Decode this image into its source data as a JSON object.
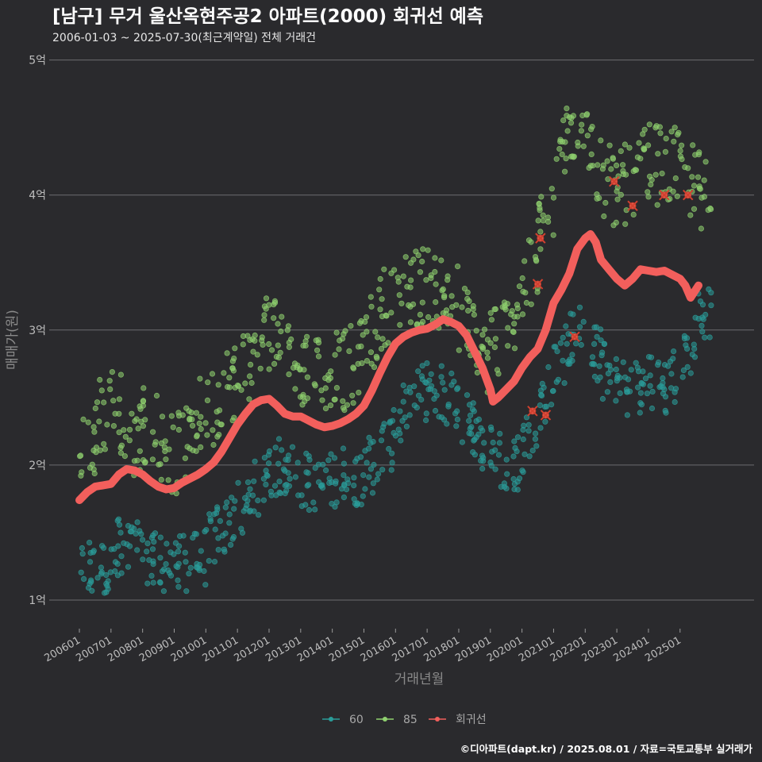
{
  "chart_data": {
    "type": "scatter",
    "title": "[남구] 무거 울산옥현주공2 아파트(2000) 회귀선 예측",
    "subtitle": "2006-01-03 ~ 2025-07-30(최근계약일) 전체 거래건",
    "xlabel": "거래년월",
    "ylabel": "매매가(원)",
    "caption": "©디아파트(dapt.kr) / 2025.08.01 / 자료=국토교통부 실거래가",
    "x_range": [
      "2006-01",
      "2025-08"
    ],
    "y_range": [
      0.8,
      5.08
    ],
    "y_ticks": [
      {
        "value": 1,
        "label": "1억"
      },
      {
        "value": 2,
        "label": "2억"
      },
      {
        "value": 3,
        "label": "3억"
      },
      {
        "value": 4,
        "label": "4억"
      },
      {
        "value": 5,
        "label": "5억"
      }
    ],
    "x_ticks": [
      "200601",
      "200701",
      "200801",
      "200901",
      "201001",
      "201101",
      "201201",
      "201301",
      "201401",
      "201501",
      "201601",
      "201701",
      "201801",
      "201901",
      "202001",
      "202101",
      "202201",
      "202301",
      "202401",
      "202501"
    ],
    "grid": "horizontal",
    "legend_position": "bottom",
    "legend": [
      {
        "name": "60",
        "color": "#2a9d9a"
      },
      {
        "name": "85",
        "color": "#8fd16f"
      },
      {
        "name": "회귀선",
        "color": "#f25f5c"
      }
    ],
    "series": [
      {
        "name": "60",
        "type": "scatter",
        "color": "#2a9d9a",
        "bands": [
          [
            "2006-01",
            1.22,
            1.2
          ],
          [
            "2006-07",
            1.25,
            1.22
          ],
          [
            "2007-01",
            1.35,
            1.45
          ],
          [
            "2007-07",
            1.35,
            1.45
          ],
          [
            "2008-01",
            1.38,
            1.25
          ],
          [
            "2008-07",
            1.3,
            1.25
          ],
          [
            "2009-01",
            1.25,
            1.28
          ],
          [
            "2009-07",
            1.28,
            1.32
          ],
          [
            "2010-01",
            1.45,
            1.48
          ],
          [
            "2010-07",
            1.55,
            1.6
          ],
          [
            "2011-01",
            1.65,
            1.7
          ],
          [
            "2011-07",
            1.8,
            1.95
          ],
          [
            "2012-01",
            1.95,
            2.0
          ],
          [
            "2012-07",
            1.95,
            1.95
          ],
          [
            "2013-01",
            1.9,
            1.85
          ],
          [
            "2013-07",
            1.85,
            1.88
          ],
          [
            "2014-01",
            1.9,
            1.95
          ],
          [
            "2014-07",
            1.92,
            1.92
          ],
          [
            "2015-01",
            1.98,
            2.02
          ],
          [
            "2015-07",
            2.1,
            2.2
          ],
          [
            "2016-01",
            2.3,
            2.45
          ],
          [
            "2016-07",
            2.5,
            2.55
          ],
          [
            "2017-01",
            2.55,
            2.55
          ],
          [
            "2017-07",
            2.5,
            2.45
          ],
          [
            "2018-01",
            2.4,
            2.3
          ],
          [
            "2018-07",
            2.2,
            2.15
          ],
          [
            "2019-01",
            2.1,
            2.0
          ],
          [
            "2019-07",
            2.0,
            2.05
          ],
          [
            "2020-01",
            2.15,
            2.25
          ],
          [
            "2020-07",
            2.45,
            2.6
          ],
          [
            "2021-01",
            2.75,
            2.85
          ],
          [
            "2021-07",
            2.95,
            3.0
          ],
          [
            "2022-01",
            2.9,
            2.8
          ],
          [
            "2022-07",
            2.7,
            2.65
          ],
          [
            "2023-01",
            2.6,
            2.55
          ],
          [
            "2023-07",
            2.55,
            2.6
          ],
          [
            "2024-01",
            2.65,
            2.6
          ],
          [
            "2024-07",
            2.55,
            2.7
          ],
          [
            "2025-01",
            2.8,
            2.9
          ],
          [
            "2025-07",
            3.1,
            3.15
          ]
        ]
      },
      {
        "name": "85",
        "type": "scatter",
        "color": "#8fd16f",
        "bands": [
          [
            "2006-01",
            2.05,
            2.1
          ],
          [
            "2006-07",
            2.35,
            2.45
          ],
          [
            "2007-01",
            2.45,
            2.35
          ],
          [
            "2007-07",
            2.25,
            2.15
          ],
          [
            "2008-01",
            2.3,
            2.35
          ],
          [
            "2008-07",
            2.2,
            2.05
          ],
          [
            "2009-01",
            2.05,
            2.2
          ],
          [
            "2009-07",
            2.3,
            2.4
          ],
          [
            "2010-01",
            2.4,
            2.5
          ],
          [
            "2010-07",
            2.55,
            2.65
          ],
          [
            "2011-01",
            2.7,
            2.8
          ],
          [
            "2011-07",
            2.95,
            3.0
          ],
          [
            "2012-01",
            3.0,
            2.9
          ],
          [
            "2012-07",
            2.85,
            2.8
          ],
          [
            "2013-01",
            2.75,
            2.7
          ],
          [
            "2013-07",
            2.7,
            2.72
          ],
          [
            "2014-01",
            2.7,
            2.7
          ],
          [
            "2014-07",
            2.72,
            2.8
          ],
          [
            "2015-01",
            2.9,
            3.05
          ],
          [
            "2015-07",
            3.15,
            3.25
          ],
          [
            "2016-01",
            3.25,
            3.3
          ],
          [
            "2016-07",
            3.3,
            3.35
          ],
          [
            "2017-01",
            3.3,
            3.3
          ],
          [
            "2017-07",
            3.25,
            3.2
          ],
          [
            "2018-01",
            3.1,
            2.95
          ],
          [
            "2018-07",
            2.85,
            2.8
          ],
          [
            "2019-01",
            2.9,
            3.0
          ],
          [
            "2019-07",
            3.1,
            3.2
          ],
          [
            "2020-01",
            3.3,
            3.45
          ],
          [
            "2020-07",
            3.7,
            3.95
          ],
          [
            "2021-01",
            4.2,
            4.4
          ],
          [
            "2021-07",
            4.5,
            4.6
          ],
          [
            "2022-01",
            4.4,
            4.2
          ],
          [
            "2022-07",
            4.1,
            4.05
          ],
          [
            "2023-01",
            4.05,
            4.1
          ],
          [
            "2023-07",
            4.15,
            4.2
          ],
          [
            "2024-01",
            4.25,
            4.2
          ],
          [
            "2024-07",
            4.2,
            4.2
          ],
          [
            "2025-01",
            4.15,
            4.1
          ],
          [
            "2025-07",
            4.05,
            4.0
          ]
        ]
      },
      {
        "name": "회귀선",
        "type": "line",
        "color": "#f25f5c",
        "points": [
          [
            "2006-01",
            1.74
          ],
          [
            "2006-04",
            1.8
          ],
          [
            "2006-07",
            1.84
          ],
          [
            "2006-10",
            1.85
          ],
          [
            "2007-01",
            1.86
          ],
          [
            "2007-04",
            1.93
          ],
          [
            "2007-07",
            1.97
          ],
          [
            "2007-10",
            1.96
          ],
          [
            "2008-01",
            1.93
          ],
          [
            "2008-04",
            1.88
          ],
          [
            "2008-07",
            1.84
          ],
          [
            "2008-10",
            1.82
          ],
          [
            "2009-01",
            1.83
          ],
          [
            "2009-04",
            1.87
          ],
          [
            "2009-07",
            1.9
          ],
          [
            "2009-10",
            1.93
          ],
          [
            "2010-01",
            1.97
          ],
          [
            "2010-04",
            2.02
          ],
          [
            "2010-07",
            2.1
          ],
          [
            "2010-10",
            2.2
          ],
          [
            "2011-01",
            2.3
          ],
          [
            "2011-04",
            2.38
          ],
          [
            "2011-07",
            2.45
          ],
          [
            "2011-10",
            2.48
          ],
          [
            "2012-01",
            2.49
          ],
          [
            "2012-04",
            2.44
          ],
          [
            "2012-07",
            2.38
          ],
          [
            "2012-10",
            2.36
          ],
          [
            "2013-01",
            2.36
          ],
          [
            "2013-04",
            2.33
          ],
          [
            "2013-07",
            2.3
          ],
          [
            "2013-10",
            2.28
          ],
          [
            "2014-01",
            2.29
          ],
          [
            "2014-04",
            2.31
          ],
          [
            "2014-07",
            2.34
          ],
          [
            "2014-10",
            2.38
          ],
          [
            "2015-01",
            2.44
          ],
          [
            "2015-04",
            2.55
          ],
          [
            "2015-07",
            2.68
          ],
          [
            "2015-10",
            2.8
          ],
          [
            "2016-01",
            2.9
          ],
          [
            "2016-04",
            2.95
          ],
          [
            "2016-07",
            2.98
          ],
          [
            "2016-10",
            3.0
          ],
          [
            "2017-01",
            3.01
          ],
          [
            "2017-04",
            3.04
          ],
          [
            "2017-07",
            3.08
          ],
          [
            "2017-10",
            3.06
          ],
          [
            "2018-01",
            3.03
          ],
          [
            "2018-04",
            2.96
          ],
          [
            "2018-07",
            2.84
          ],
          [
            "2018-10",
            2.72
          ],
          [
            "2019-01",
            2.56
          ],
          [
            "2019-02",
            2.47
          ],
          [
            "2019-04",
            2.5
          ],
          [
            "2019-07",
            2.56
          ],
          [
            "2019-10",
            2.62
          ],
          [
            "2020-01",
            2.72
          ],
          [
            "2020-04",
            2.8
          ],
          [
            "2020-07",
            2.86
          ],
          [
            "2020-10",
            3.0
          ],
          [
            "2021-01",
            3.2
          ],
          [
            "2021-04",
            3.3
          ],
          [
            "2021-07",
            3.42
          ],
          [
            "2021-10",
            3.6
          ],
          [
            "2022-01",
            3.68
          ],
          [
            "2022-03",
            3.71
          ],
          [
            "2022-05",
            3.65
          ],
          [
            "2022-07",
            3.52
          ],
          [
            "2022-10",
            3.45
          ],
          [
            "2023-01",
            3.38
          ],
          [
            "2023-04",
            3.33
          ],
          [
            "2023-07",
            3.38
          ],
          [
            "2023-10",
            3.45
          ],
          [
            "2024-01",
            3.44
          ],
          [
            "2024-04",
            3.43
          ],
          [
            "2024-07",
            3.44
          ],
          [
            "2024-10",
            3.41
          ],
          [
            "2025-01",
            3.38
          ],
          [
            "2025-03",
            3.33
          ],
          [
            "2025-05",
            3.24
          ],
          [
            "2025-07",
            3.3
          ],
          [
            "2025-08",
            3.33
          ]
        ]
      }
    ],
    "red_x_marks": [
      [
        "2020-07",
        3.34
      ],
      [
        "2020-08",
        3.68
      ],
      [
        "2020-05",
        2.4
      ],
      [
        "2020-10",
        2.37
      ],
      [
        "2021-09",
        2.95
      ],
      [
        "2022-12",
        4.1
      ],
      [
        "2023-07",
        3.92
      ],
      [
        "2024-07",
        4.0
      ],
      [
        "2025-04",
        4.0
      ]
    ]
  }
}
